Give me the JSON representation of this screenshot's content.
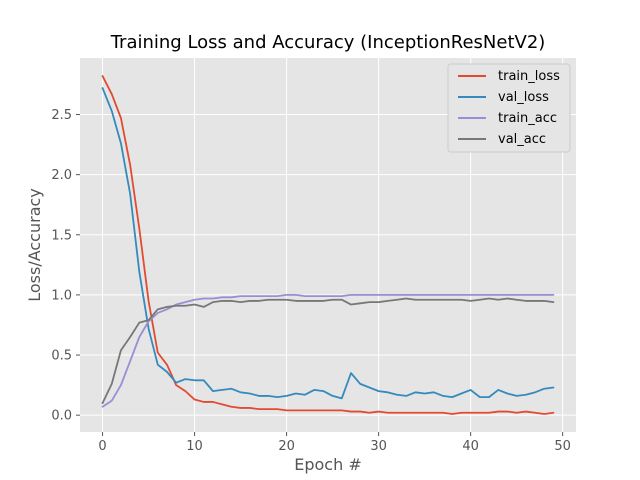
{
  "chart_data": {
    "type": "line",
    "title": "Training Loss and Accuracy (InceptionResNetV2)",
    "xlabel": "Epoch #",
    "ylabel": "Loss/Accuracy",
    "xlim": [
      -2.45,
      51.45
    ],
    "ylim": [
      -0.14,
      2.97
    ],
    "xticks": [
      0,
      10,
      20,
      30,
      40,
      50
    ],
    "yticks": [
      0.0,
      0.5,
      1.0,
      1.5,
      2.0,
      2.5
    ],
    "xtick_labels": [
      "0",
      "10",
      "20",
      "30",
      "40",
      "50"
    ],
    "ytick_labels": [
      "0.0",
      "0.5",
      "1.0",
      "1.5",
      "2.0",
      "2.5"
    ],
    "grid": true,
    "legend_position": "top-right",
    "x": [
      0,
      1,
      2,
      3,
      4,
      5,
      6,
      7,
      8,
      9,
      10,
      11,
      12,
      13,
      14,
      15,
      16,
      17,
      18,
      19,
      20,
      21,
      22,
      23,
      24,
      25,
      26,
      27,
      28,
      29,
      30,
      31,
      32,
      33,
      34,
      35,
      36,
      37,
      38,
      39,
      40,
      41,
      42,
      43,
      44,
      45,
      46,
      47,
      48,
      49
    ],
    "series": [
      {
        "name": "train_loss",
        "color": "#e24a33",
        "values": [
          2.82,
          2.67,
          2.47,
          2.08,
          1.55,
          0.95,
          0.52,
          0.42,
          0.25,
          0.2,
          0.13,
          0.11,
          0.11,
          0.09,
          0.07,
          0.06,
          0.06,
          0.05,
          0.05,
          0.05,
          0.04,
          0.04,
          0.04,
          0.04,
          0.04,
          0.04,
          0.04,
          0.03,
          0.03,
          0.02,
          0.03,
          0.02,
          0.02,
          0.02,
          0.02,
          0.02,
          0.02,
          0.02,
          0.01,
          0.02,
          0.02,
          0.02,
          0.02,
          0.03,
          0.03,
          0.02,
          0.03,
          0.02,
          0.01,
          0.02
        ]
      },
      {
        "name": "val_loss",
        "color": "#348abd",
        "values": [
          2.72,
          2.53,
          2.26,
          1.84,
          1.19,
          0.72,
          0.42,
          0.36,
          0.27,
          0.3,
          0.29,
          0.29,
          0.2,
          0.21,
          0.22,
          0.19,
          0.18,
          0.16,
          0.16,
          0.15,
          0.16,
          0.18,
          0.17,
          0.21,
          0.2,
          0.16,
          0.14,
          0.35,
          0.26,
          0.23,
          0.2,
          0.19,
          0.17,
          0.16,
          0.19,
          0.18,
          0.19,
          0.16,
          0.15,
          0.18,
          0.21,
          0.15,
          0.15,
          0.21,
          0.18,
          0.16,
          0.17,
          0.19,
          0.22,
          0.23
        ]
      },
      {
        "name": "train_acc",
        "color": "#988ed5",
        "values": [
          0.07,
          0.12,
          0.25,
          0.45,
          0.65,
          0.78,
          0.85,
          0.88,
          0.92,
          0.94,
          0.96,
          0.97,
          0.97,
          0.98,
          0.98,
          0.99,
          0.99,
          0.99,
          0.99,
          0.99,
          1.0,
          1.0,
          0.99,
          0.99,
          0.99,
          0.99,
          0.99,
          1.0,
          1.0,
          1.0,
          1.0,
          1.0,
          1.0,
          1.0,
          1.0,
          1.0,
          1.0,
          1.0,
          1.0,
          1.0,
          1.0,
          1.0,
          1.0,
          1.0,
          1.0,
          1.0,
          1.0,
          1.0,
          1.0,
          1.0
        ]
      },
      {
        "name": "val_acc",
        "color": "#777777",
        "values": [
          0.1,
          0.26,
          0.54,
          0.65,
          0.77,
          0.79,
          0.88,
          0.9,
          0.91,
          0.91,
          0.92,
          0.9,
          0.94,
          0.95,
          0.95,
          0.94,
          0.95,
          0.95,
          0.96,
          0.96,
          0.96,
          0.95,
          0.95,
          0.95,
          0.95,
          0.96,
          0.96,
          0.92,
          0.93,
          0.94,
          0.94,
          0.95,
          0.96,
          0.97,
          0.96,
          0.96,
          0.96,
          0.96,
          0.96,
          0.96,
          0.95,
          0.96,
          0.97,
          0.96,
          0.97,
          0.96,
          0.95,
          0.95,
          0.95,
          0.94
        ]
      }
    ]
  }
}
